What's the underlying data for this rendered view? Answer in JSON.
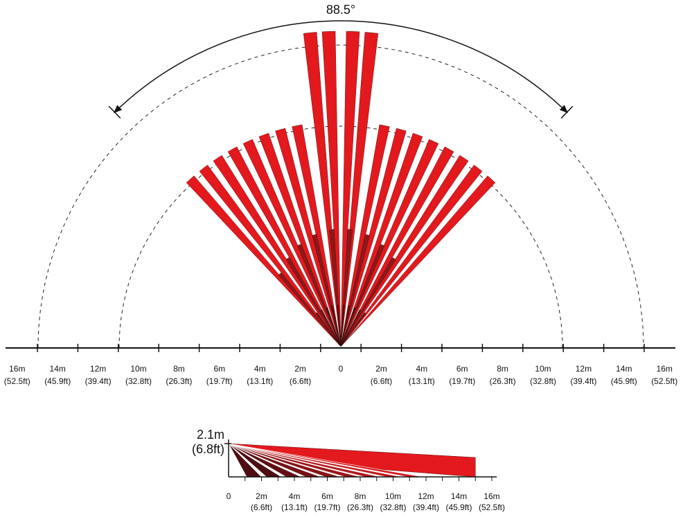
{
  "angle_label": "88.5°",
  "top_axis": {
    "ticks": [
      {
        "m": "16m",
        "ft": "(52.5ft)"
      },
      {
        "m": "14m",
        "ft": "(45.9ft)"
      },
      {
        "m": "12m",
        "ft": "(39.4ft)"
      },
      {
        "m": "10m",
        "ft": "(32.8ft)"
      },
      {
        "m": "8m",
        "ft": "(26.3ft)"
      },
      {
        "m": "6m",
        "ft": "(19.7ft)"
      },
      {
        "m": "4m",
        "ft": "(13.1ft)"
      },
      {
        "m": "2m",
        "ft": "(6.6ft)"
      },
      {
        "m": "0"
      },
      {
        "m": "2m",
        "ft": "(6.6ft)"
      },
      {
        "m": "4m",
        "ft": "(13.1ft)"
      },
      {
        "m": "6m",
        "ft": "(19.7ft)"
      },
      {
        "m": "8m",
        "ft": "(26.3ft)"
      },
      {
        "m": "10m",
        "ft": "(32.8ft)"
      },
      {
        "m": "12m",
        "ft": "(39.4ft)"
      },
      {
        "m": "14m",
        "ft": "(45.9ft)"
      },
      {
        "m": "16m",
        "ft": "(52.5ft)"
      }
    ]
  },
  "side_view": {
    "height_m": "2.1m",
    "height_ft": "(6.8ft)",
    "ticks": [
      {
        "m": "0"
      },
      {
        "m": "2m",
        "ft": "(6.6ft)"
      },
      {
        "m": "4m",
        "ft": "(13.1ft)"
      },
      {
        "m": "6m",
        "ft": "(19.7ft)"
      },
      {
        "m": "8m",
        "ft": "(26.3ft)"
      },
      {
        "m": "10m",
        "ft": "(32.8ft)"
      },
      {
        "m": "12m",
        "ft": "(39.4ft)"
      },
      {
        "m": "14m",
        "ft": "(45.9ft)"
      },
      {
        "m": "16m",
        "ft": "(52.5ft)"
      }
    ]
  }
}
